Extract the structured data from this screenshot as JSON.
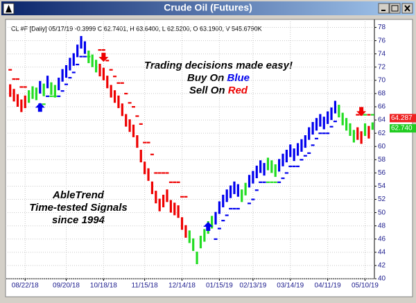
{
  "window_title": "Crude Oil (Futures)",
  "chart_data": {
    "type": "ohlc",
    "header": "CL #F [Daily] 05/17/19  -0.3999 C 62.7401, H 63.6400, L 62.5200, O 63.1900, V 545.6790K",
    "annotations": {
      "tagline": "Trading decisions made easy!",
      "buy": [
        "Buy On",
        "Blue"
      ],
      "sell": [
        "Sell On",
        "Red"
      ],
      "brand": [
        "AbleTrend",
        "Time-tested Signals",
        "since 1994"
      ]
    },
    "ylim": [
      40,
      79
    ],
    "yticks": [
      40,
      42,
      44,
      46,
      48,
      50,
      52,
      54,
      56,
      58,
      60,
      62,
      64,
      66,
      68,
      70,
      72,
      74,
      76,
      78
    ],
    "xlim": [
      -0.5,
      97.5
    ],
    "xticks": [
      {
        "value": 4,
        "label": "08/22/18"
      },
      {
        "value": 15,
        "label": "09/20/18"
      },
      {
        "value": 25,
        "label": "10/18/18"
      },
      {
        "value": 36,
        "label": "11/15/18"
      },
      {
        "value": 46,
        "label": "12/14/18"
      },
      {
        "value": 56,
        "label": "01/15/19"
      },
      {
        "value": 65,
        "label": "02/13/19"
      },
      {
        "value": 75,
        "label": "03/14/19"
      },
      {
        "value": 85,
        "label": "04/11/19"
      },
      {
        "value": 95,
        "label": "05/10/19"
      }
    ],
    "grid": true,
    "colors": [
      "#ee0000",
      "#22dd22",
      "#0000ee"
    ],
    "high": [
      69.4,
      68.7,
      67.9,
      67.1,
      67.7,
      68.5,
      69.1,
      68.9,
      69.9,
      69.5,
      70.7,
      69.7,
      69.3,
      70.4,
      71.7,
      72.3,
      73.4,
      74.1,
      75.4,
      76.7,
      75.9,
      74.5,
      73.9,
      73.1,
      72.5,
      71.9,
      70.7,
      69.3,
      68.5,
      67.7,
      66.5,
      64.9,
      64.1,
      63.3,
      61.7,
      59.5,
      57.7,
      56.7,
      54.7,
      53.3,
      52.1,
      52.7,
      53.5,
      51.9,
      51.5,
      51.1,
      49.3,
      48.1,
      47.3,
      46.1,
      44.1,
      46.5,
      47.5,
      48.7,
      49.5,
      50.1,
      51.7,
      52.7,
      53.5,
      54.1,
      54.7,
      54.3,
      53.5,
      54.5,
      55.7,
      56.3,
      57.1,
      57.9,
      57.5,
      58.3,
      57.9,
      57.3,
      58.1,
      58.9,
      59.5,
      60.3,
      59.7,
      60.5,
      61.1,
      61.7,
      62.9,
      63.7,
      64.3,
      64.9,
      64.5,
      65.3,
      65.9,
      66.9,
      66.3,
      65.1,
      64.3,
      63.5,
      62.5,
      62.9,
      62.3,
      63.5,
      63.1,
      63.64
    ],
    "low": [
      67.5,
      66.8,
      66.0,
      65.2,
      65.8,
      66.6,
      67.2,
      67.0,
      68.0,
      67.6,
      68.8,
      67.8,
      67.4,
      68.5,
      69.8,
      70.4,
      71.5,
      72.2,
      73.5,
      74.8,
      74.0,
      72.6,
      72.0,
      71.2,
      70.6,
      70.0,
      68.8,
      67.4,
      66.6,
      65.8,
      64.6,
      63.0,
      62.2,
      61.4,
      59.8,
      57.6,
      55.8,
      54.8,
      52.8,
      51.4,
      50.2,
      50.8,
      51.6,
      50.0,
      49.6,
      49.2,
      47.4,
      46.2,
      45.4,
      44.2,
      42.2,
      44.6,
      45.6,
      46.8,
      47.6,
      48.2,
      49.8,
      50.8,
      51.6,
      52.2,
      52.8,
      52.4,
      51.6,
      52.6,
      53.8,
      54.4,
      55.2,
      56.0,
      55.6,
      56.4,
      56.0,
      55.4,
      56.2,
      57.0,
      57.6,
      58.4,
      57.8,
      58.6,
      59.2,
      59.8,
      61.0,
      61.8,
      62.4,
      63.0,
      62.6,
      63.4,
      64.0,
      65.0,
      64.4,
      63.2,
      62.4,
      61.6,
      60.6,
      61.0,
      60.4,
      61.6,
      61.2,
      62.52
    ],
    "color_index": [
      0,
      0,
      0,
      0,
      0,
      1,
      1,
      1,
      2,
      1,
      2,
      1,
      1,
      2,
      2,
      2,
      2,
      2,
      2,
      2,
      2,
      1,
      1,
      1,
      0,
      0,
      0,
      0,
      0,
      0,
      0,
      0,
      0,
      0,
      0,
      0,
      0,
      0,
      0,
      0,
      0,
      0,
      0,
      0,
      0,
      0,
      0,
      0,
      1,
      1,
      1,
      1,
      1,
      1,
      1,
      2,
      2,
      2,
      2,
      2,
      2,
      2,
      1,
      1,
      2,
      2,
      2,
      2,
      2,
      1,
      1,
      1,
      2,
      2,
      2,
      2,
      2,
      2,
      2,
      2,
      2,
      2,
      2,
      2,
      2,
      2,
      2,
      2,
      1,
      1,
      1,
      1,
      1,
      0,
      0,
      1,
      0,
      1
    ],
    "stops": [
      71.6,
      70.2,
      70.2,
      69.0,
      69.0,
      null,
      null,
      null,
      66.4,
      66.4,
      67.6,
      67.6,
      67.6,
      67.6,
      68.4,
      69.4,
      70.4,
      71.2,
      72.4,
      73.6,
      73.6,
      73.6,
      null,
      null,
      74.6,
      74.6,
      73.0,
      71.6,
      70.6,
      69.6,
      69.6,
      68.0,
      66.6,
      66.0,
      64.6,
      63.4,
      60.6,
      60.6,
      58.8,
      56.0,
      56.0,
      56.0,
      56.0,
      54.6,
      54.6,
      54.6,
      52.4,
      52.4,
      null,
      null,
      null,
      null,
      null,
      null,
      null,
      46.0,
      47.6,
      48.8,
      49.6,
      50.6,
      50.6,
      50.6,
      null,
      null,
      51.4,
      52.0,
      53.4,
      54.6,
      54.6,
      54.6,
      54.6,
      54.6,
      54.6,
      55.2,
      56.0,
      57.0,
      57.0,
      57.0,
      58.0,
      58.6,
      59.0,
      60.2,
      61.2,
      62.0,
      62.0,
      62.0,
      63.0,
      63.8,
      null,
      null,
      null,
      null,
      null,
      64.8,
      64.8,
      64.8,
      64.8,
      64.8
    ],
    "buy_signals": [
      {
        "x": 8,
        "y": 66.6
      },
      {
        "x": 53,
        "y": 48.6
      }
    ],
    "sell_signals": [
      {
        "x": 25,
        "y": 72.8
      },
      {
        "x": 94,
        "y": 64.6
      }
    ],
    "price_tags": [
      {
        "value": 64.287,
        "label": "64.287",
        "color": "#ee2222"
      },
      {
        "value": 62.74,
        "label": "62.740",
        "color": "#22cc22"
      }
    ]
  }
}
